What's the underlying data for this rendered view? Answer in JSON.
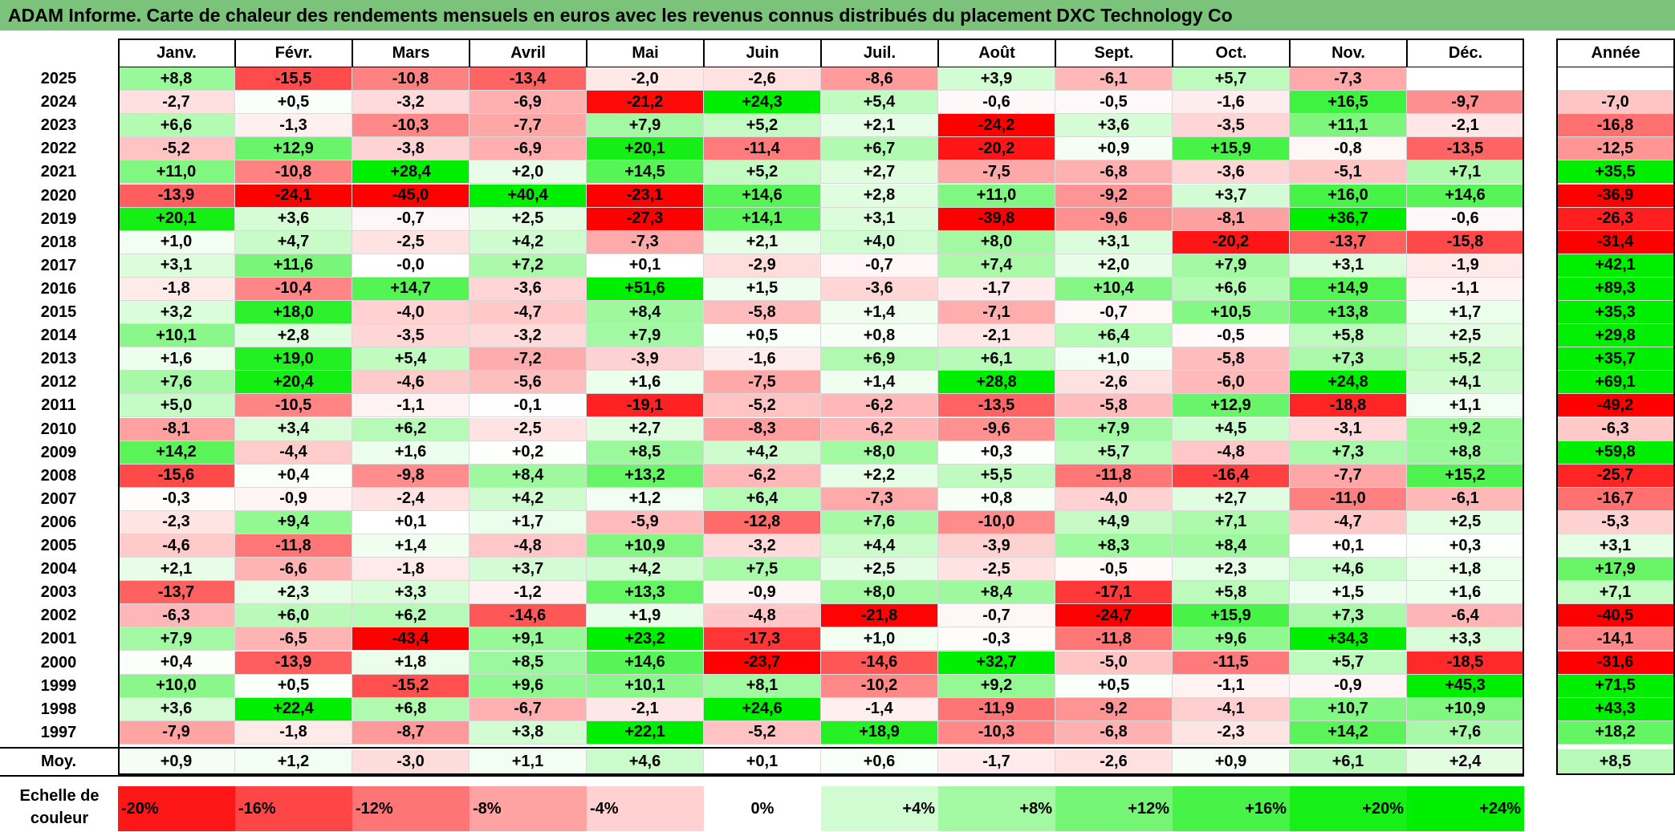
{
  "title": "ADAM Informe. Carte de chaleur des rendements mensuels en euros avec les revenus connus distribués du placement DXC Technology Co",
  "chart_data": {
    "type": "heatmap",
    "months": [
      "Janv.",
      "Févr.",
      "Mars",
      "Avril",
      "Mai",
      "Juin",
      "Juil.",
      "Août",
      "Sept.",
      "Oct.",
      "Nov.",
      "Déc."
    ],
    "year_header": "Année",
    "avg_label": "Moy.",
    "rows": [
      {
        "year": "2025",
        "values": [
          "+8,8",
          "-15,5",
          "-10,8",
          "-13,4",
          "-2,0",
          "-2,6",
          "-8,6",
          "+3,9",
          "-6,1",
          "+5,7",
          "-7,3",
          ""
        ],
        "annual": ""
      },
      {
        "year": "2024",
        "values": [
          "-2,7",
          "+0,5",
          "-3,2",
          "-6,9",
          "-21,2",
          "+24,3",
          "+5,4",
          "-0,6",
          "-0,5",
          "-1,6",
          "+16,5",
          "-9,7"
        ],
        "annual": "-7,0"
      },
      {
        "year": "2023",
        "values": [
          "+6,6",
          "-1,3",
          "-10,3",
          "-7,7",
          "+7,9",
          "+5,2",
          "+2,1",
          "-24,2",
          "+3,6",
          "-3,5",
          "+11,1",
          "-2,1"
        ],
        "annual": "-16,8"
      },
      {
        "year": "2022",
        "values": [
          "-5,2",
          "+12,9",
          "-3,8",
          "-6,9",
          "+20,1",
          "-11,4",
          "+6,7",
          "-20,2",
          "+0,9",
          "+15,9",
          "-0,8",
          "-13,5"
        ],
        "annual": "-12,5"
      },
      {
        "year": "2021",
        "values": [
          "+11,0",
          "-10,8",
          "+28,4",
          "+2,0",
          "+14,5",
          "+5,2",
          "+2,7",
          "-7,5",
          "-6,8",
          "-3,6",
          "-5,1",
          "+7,1"
        ],
        "annual": "+35,5"
      },
      {
        "year": "2020",
        "values": [
          "-13,9",
          "-24,1",
          "-45,0",
          "+40,4",
          "-23,1",
          "+14,6",
          "+2,8",
          "+11,0",
          "-9,2",
          "+3,7",
          "+16,0",
          "+14,6"
        ],
        "annual": "-36,9"
      },
      {
        "year": "2019",
        "values": [
          "+20,1",
          "+3,6",
          "-0,7",
          "+2,5",
          "-27,3",
          "+14,1",
          "+3,1",
          "-39,8",
          "-9,6",
          "-8,1",
          "+36,7",
          "-0,6"
        ],
        "annual": "-26,3"
      },
      {
        "year": "2018",
        "values": [
          "+1,0",
          "+4,7",
          "-2,5",
          "+4,2",
          "-7,3",
          "+2,1",
          "+4,0",
          "+8,0",
          "+3,1",
          "-20,2",
          "-13,7",
          "-15,8"
        ],
        "annual": "-31,4"
      },
      {
        "year": "2017",
        "values": [
          "+3,1",
          "+11,6",
          "-0,0",
          "+7,2",
          "+0,1",
          "-2,9",
          "-0,7",
          "+7,4",
          "+2,0",
          "+7,9",
          "+3,1",
          "-1,9"
        ],
        "annual": "+42,1"
      },
      {
        "year": "2016",
        "values": [
          "-1,8",
          "-10,4",
          "+14,7",
          "-3,6",
          "+51,6",
          "+1,5",
          "-3,6",
          "-1,7",
          "+10,4",
          "+6,6",
          "+14,9",
          "-1,1"
        ],
        "annual": "+89,3"
      },
      {
        "year": "2015",
        "values": [
          "+3,2",
          "+18,0",
          "-4,0",
          "-4,7",
          "+8,4",
          "-5,8",
          "+1,4",
          "-7,1",
          "-0,7",
          "+10,5",
          "+13,8",
          "+1,7"
        ],
        "annual": "+35,3"
      },
      {
        "year": "2014",
        "values": [
          "+10,1",
          "+2,8",
          "-3,5",
          "-3,2",
          "+7,9",
          "+0,5",
          "+0,8",
          "-2,1",
          "+6,4",
          "-0,5",
          "+5,8",
          "+2,5"
        ],
        "annual": "+29,8"
      },
      {
        "year": "2013",
        "values": [
          "+1,6",
          "+19,0",
          "+5,4",
          "-7,2",
          "-3,9",
          "-1,6",
          "+6,9",
          "+6,1",
          "+1,0",
          "-5,8",
          "+7,3",
          "+5,2"
        ],
        "annual": "+35,7"
      },
      {
        "year": "2012",
        "values": [
          "+7,6",
          "+20,4",
          "-4,6",
          "-5,6",
          "+1,6",
          "-7,5",
          "+1,4",
          "+28,8",
          "-2,6",
          "-6,0",
          "+24,8",
          "+4,1"
        ],
        "annual": "+69,1"
      },
      {
        "year": "2011",
        "values": [
          "+5,0",
          "-10,5",
          "-1,1",
          "-0,1",
          "-19,1",
          "-5,2",
          "-6,2",
          "-13,5",
          "-5,8",
          "+12,9",
          "-18,8",
          "+1,1"
        ],
        "annual": "-49,2"
      },
      {
        "year": "2010",
        "values": [
          "-8,1",
          "+3,4",
          "+6,2",
          "-2,5",
          "+2,7",
          "-8,3",
          "-6,2",
          "-9,6",
          "+7,9",
          "+4,5",
          "-3,1",
          "+9,2"
        ],
        "annual": "-6,3"
      },
      {
        "year": "2009",
        "values": [
          "+14,2",
          "-4,4",
          "+1,6",
          "+0,2",
          "+8,5",
          "+4,2",
          "+8,0",
          "+0,3",
          "+5,7",
          "-4,8",
          "+7,3",
          "+8,8"
        ],
        "annual": "+59,8"
      },
      {
        "year": "2008",
        "values": [
          "-15,6",
          "+0,4",
          "-9,8",
          "+8,4",
          "+13,2",
          "-6,2",
          "+2,2",
          "+5,5",
          "-11,8",
          "-16,4",
          "-7,7",
          "+15,2"
        ],
        "annual": "-25,7"
      },
      {
        "year": "2007",
        "values": [
          "-0,3",
          "-0,9",
          "-2,4",
          "+4,2",
          "+1,2",
          "+6,4",
          "-7,3",
          "+0,8",
          "-4,0",
          "+2,7",
          "-11,0",
          "-6,1"
        ],
        "annual": "-16,7"
      },
      {
        "year": "2006",
        "values": [
          "-2,3",
          "+9,4",
          "+0,1",
          "+1,7",
          "-5,9",
          "-12,8",
          "+7,6",
          "-10,0",
          "+4,9",
          "+7,1",
          "-4,7",
          "+2,5"
        ],
        "annual": "-5,3"
      },
      {
        "year": "2005",
        "values": [
          "-4,6",
          "-11,8",
          "+1,4",
          "-4,8",
          "+10,9",
          "-3,2",
          "+4,4",
          "-3,9",
          "+8,3",
          "+8,4",
          "+0,1",
          "+0,3"
        ],
        "annual": "+3,1"
      },
      {
        "year": "2004",
        "values": [
          "+2,1",
          "-6,6",
          "-1,8",
          "+3,7",
          "+4,2",
          "+7,5",
          "+2,5",
          "-2,5",
          "-0,5",
          "+2,3",
          "+4,6",
          "+1,8"
        ],
        "annual": "+17,9"
      },
      {
        "year": "2003",
        "values": [
          "-13,7",
          "+2,3",
          "+3,3",
          "-1,2",
          "+13,3",
          "-0,9",
          "+8,0",
          "+8,4",
          "-17,1",
          "+5,8",
          "+1,5",
          "+1,6"
        ],
        "annual": "+7,1"
      },
      {
        "year": "2002",
        "values": [
          "-6,3",
          "+6,0",
          "+6,2",
          "-14,6",
          "+1,9",
          "-4,8",
          "-21,8",
          "-0,7",
          "-24,7",
          "+15,9",
          "+7,3",
          "-6,4"
        ],
        "annual": "-40,5"
      },
      {
        "year": "2001",
        "values": [
          "+7,9",
          "-6,5",
          "-43,4",
          "+9,1",
          "+23,2",
          "-17,3",
          "+1,0",
          "-0,3",
          "-11,8",
          "+9,6",
          "+34,3",
          "+3,3"
        ],
        "annual": "-14,1"
      },
      {
        "year": "2000",
        "values": [
          "+0,4",
          "-13,9",
          "+1,8",
          "+8,5",
          "+14,6",
          "-23,7",
          "-14,6",
          "+32,7",
          "-5,0",
          "-11,5",
          "+5,7",
          "-18,5"
        ],
        "annual": "-31,6"
      },
      {
        "year": "1999",
        "values": [
          "+10,0",
          "+0,5",
          "-15,2",
          "+9,6",
          "+10,1",
          "+8,1",
          "-10,2",
          "+9,2",
          "+0,5",
          "-1,1",
          "-0,9",
          "+45,3"
        ],
        "annual": "+71,5"
      },
      {
        "year": "1998",
        "values": [
          "+3,6",
          "+22,4",
          "+6,8",
          "-6,7",
          "-2,1",
          "+24,6",
          "-1,4",
          "-11,9",
          "-9,2",
          "-4,1",
          "+10,7",
          "+10,9"
        ],
        "annual": "+43,3"
      },
      {
        "year": "1997",
        "values": [
          "-7,9",
          "-1,8",
          "-8,7",
          "+3,8",
          "+22,1",
          "-5,2",
          "+18,9",
          "-10,3",
          "-6,8",
          "-2,3",
          "+14,2",
          "+7,6"
        ],
        "annual": "+18,2"
      }
    ],
    "averages": [
      "+0,9",
      "+1,2",
      "-3,0",
      "+1,1",
      "+4,6",
      "+0,1",
      "+0,6",
      "-1,7",
      "-2,6",
      "+0,9",
      "+6,1",
      "+2,4"
    ],
    "average_annual": "+8,5",
    "scale_label": "Echelle de couleur",
    "scale": [
      "-20%",
      "-16%",
      "-12%",
      "-8%",
      "-4%",
      "0%",
      "+4%",
      "+8%",
      "+12%",
      "+16%",
      "+20%",
      "+24%"
    ],
    "colors": {
      "negative_max": "#ff0000",
      "neutral": "#ffffff",
      "positive_max": "#00ee00",
      "title_bg": "#7bc37b"
    }
  }
}
